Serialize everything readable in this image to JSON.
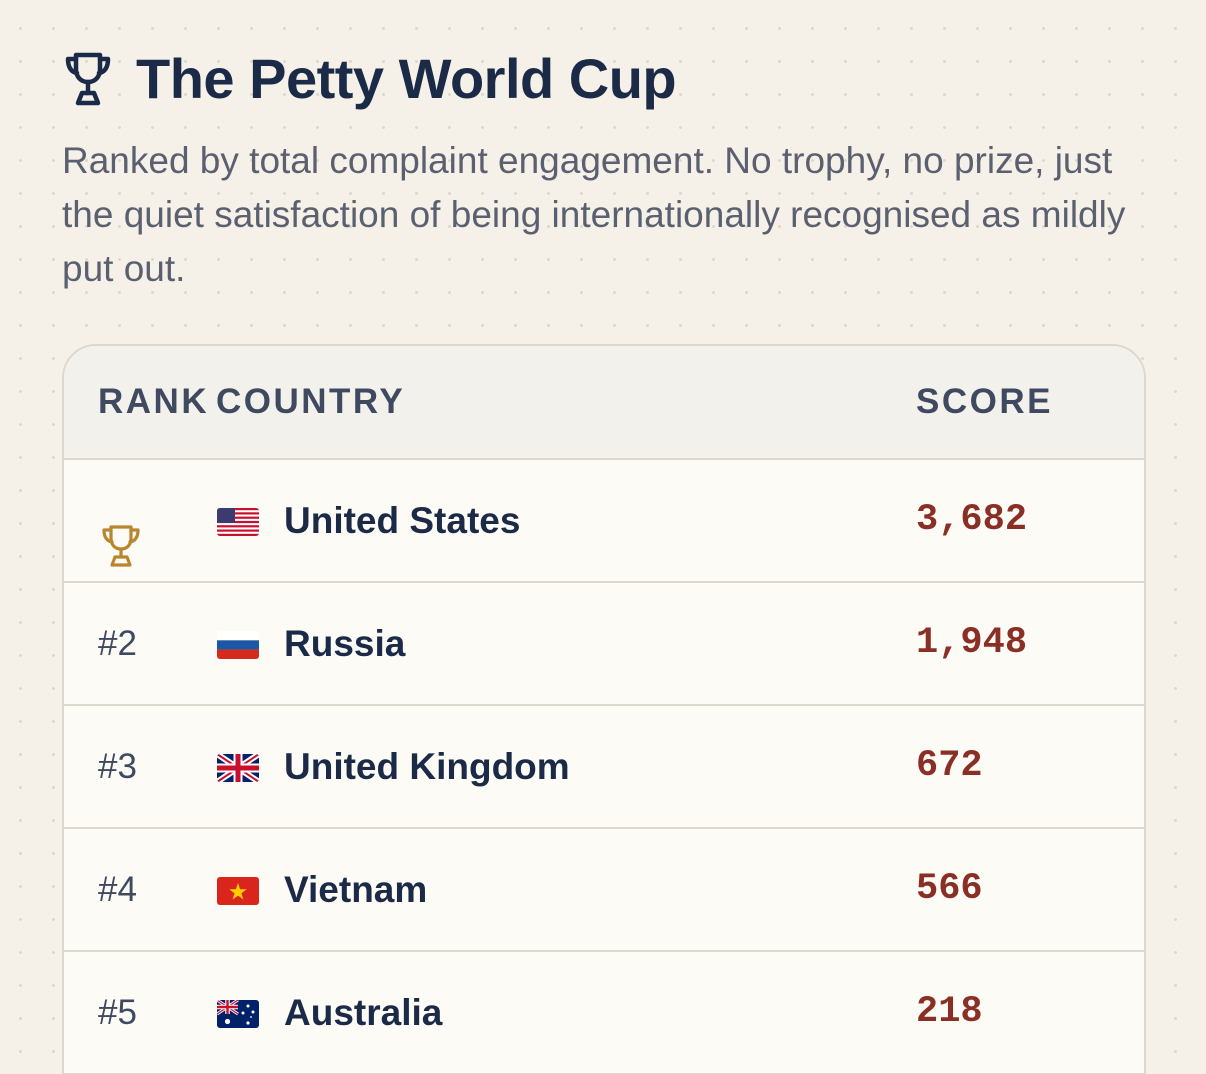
{
  "header": {
    "title": "The Petty World Cup",
    "subtitle": "Ranked by total complaint engagement. No trophy, no prize, just the quiet satisfaction of being internationally recognised as mildly put out.",
    "icon": "trophy-icon"
  },
  "table": {
    "columns": {
      "rank": "RANK",
      "country": "COUNTRY",
      "score": "SCORE"
    },
    "rows": [
      {
        "rank": "",
        "rank_icon": "trophy-icon",
        "flag": "us-flag-icon",
        "country": "United States",
        "score": "3,682"
      },
      {
        "rank": "#2",
        "flag": "russia-flag-icon",
        "country": "Russia",
        "score": "1,948"
      },
      {
        "rank": "#3",
        "flag": "uk-flag-icon",
        "country": "United Kingdom",
        "score": "672"
      },
      {
        "rank": "#4",
        "flag": "vietnam-flag-icon",
        "country": "Vietnam",
        "score": "566"
      },
      {
        "rank": "#5",
        "flag": "australia-flag-icon",
        "country": "Australia",
        "score": "218"
      }
    ]
  },
  "colors": {
    "background": "#f5f1e8",
    "title": "#1b2a47",
    "subtitle": "#5b6070",
    "score": "#8a2f26",
    "trophy_gold": "#b8862f"
  }
}
